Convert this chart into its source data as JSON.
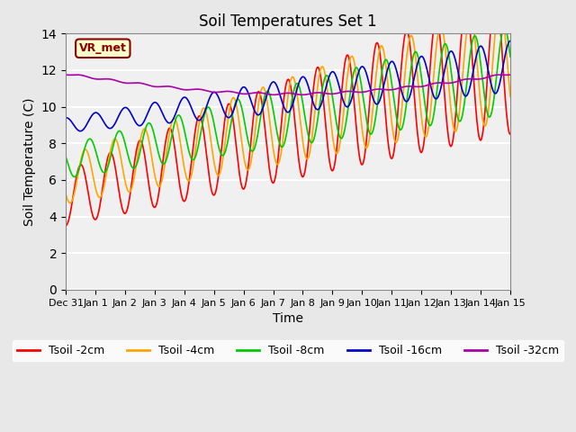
{
  "title": "Soil Temperatures Set 1",
  "xlabel": "Time",
  "ylabel": "Soil Temperature (C)",
  "ylim": [
    0,
    14
  ],
  "yticks": [
    0,
    2,
    4,
    6,
    8,
    10,
    12,
    14
  ],
  "date_labels": [
    "Dec 31",
    "Jan 1",
    "Jan 2",
    "Jan 3",
    "Jan 4",
    "Jan 5",
    "Jan 6",
    "Jan 7",
    "Jan 8",
    "Jan 9",
    "Jan 10",
    "Jan 11",
    "Jan 12",
    "Jan 13",
    "Jan 14",
    "Jan 15"
  ],
  "annotation_text": "VR_met",
  "annotation_color": "#8B0000",
  "annotation_bg": "#FFFFCC",
  "colors": {
    "Tsoil -2cm": "#FF0000",
    "Tsoil -4cm": "#FFA500",
    "Tsoil -8cm": "#00CC00",
    "Tsoil -16cm": "#0000CC",
    "Tsoil -32cm": "#AA00AA"
  },
  "legend_labels": [
    "Tsoil -2cm",
    "Tsoil -4cm",
    "Tsoil -8cm",
    "Tsoil -16cm",
    "Tsoil -32cm"
  ],
  "background_color": "#E8E8E8",
  "plot_bg_color": "#F0F0F0",
  "grid_color": "white",
  "figsize": [
    6.4,
    4.8
  ],
  "dpi": 100
}
